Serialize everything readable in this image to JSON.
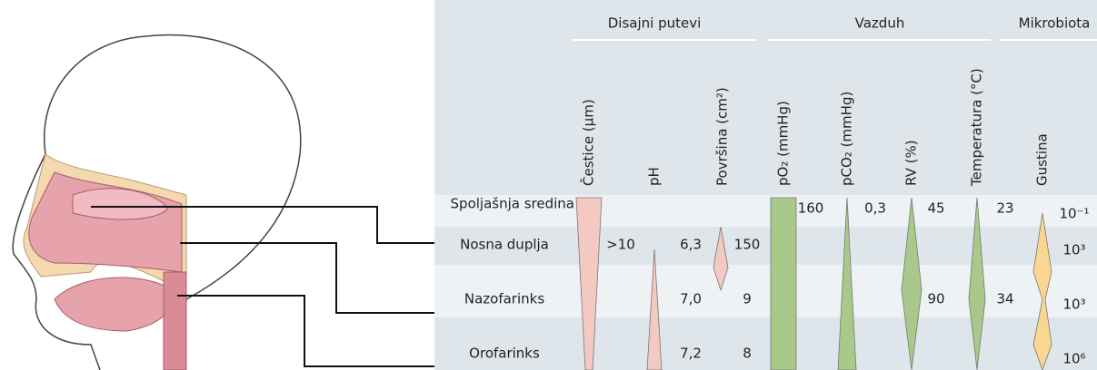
{
  "groups": [
    {
      "label": "Disajni putevi"
    },
    {
      "label": "Vazduh"
    },
    {
      "label": "Mikrobiota"
    }
  ],
  "columns": {
    "cestice": "Čestice (µm)",
    "ph": "pH",
    "povrsina": "Površina (cm²)",
    "po2": "pO₂  (mmHg)",
    "pco2": "pCO₂  (mmHg)",
    "rv": "RV (%)",
    "temperatura": "Temperatura (°C)",
    "gustina": "Gustina"
  },
  "rows": [
    {
      "label": "Spoljašnja sredina",
      "po2": "160",
      "pco2": "0,3",
      "rv": "45",
      "temperatura": "23",
      "gustina": "10⁻¹"
    },
    {
      "label": "Nosna duplja",
      "cestice": ">10",
      "ph": "6,3",
      "povrsina": "150",
      "gustina": "10³"
    },
    {
      "label": "Nazofarinks",
      "ph": "7,0",
      "povrsina": "9",
      "rv": "90",
      "temperatura": "34",
      "gustina": "10³"
    },
    {
      "label": "Orofarinks",
      "ph": "7,2",
      "povrsina": "8",
      "gustina": "10⁶"
    }
  ]
}
